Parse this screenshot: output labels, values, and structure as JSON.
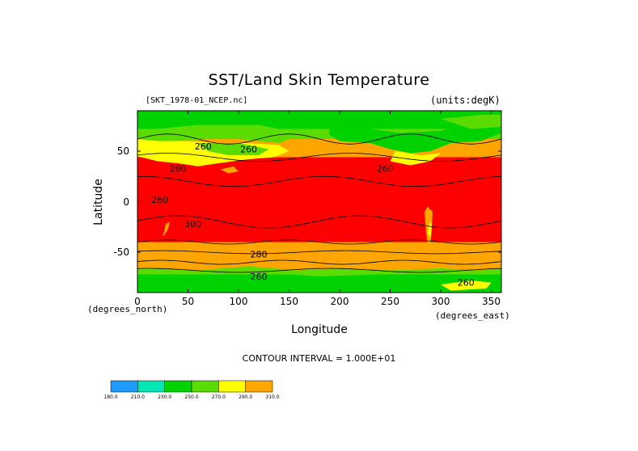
{
  "chart_data": {
    "type": "heatmap",
    "title": "SST/Land Skin Temperature",
    "subtitle_left": "[SKT_1978-01_NCEP.nc]",
    "subtitle_right": "(units:degK)",
    "xlabel": "Longitude",
    "ylabel": "Latitude",
    "x_units_label": "(degrees_east)",
    "y_units_label": "(degrees_north)",
    "xlim": [
      0,
      360
    ],
    "ylim": [
      -90,
      90
    ],
    "x_ticks": [
      "0",
      "50",
      "100",
      "150",
      "200",
      "250",
      "300",
      "350"
    ],
    "x_tick_values": [
      0,
      50,
      100,
      150,
      200,
      250,
      300,
      350
    ],
    "y_ticks": [
      "50",
      "0",
      "-50"
    ],
    "y_tick_values": [
      50,
      0,
      -50
    ],
    "contour_interval_label": "CONTOUR INTERVAL = 1.000E+01",
    "contour_labels": [
      {
        "text": "260",
        "x": 110,
        "y": 52
      },
      {
        "text": "260",
        "x": 65,
        "y": 55
      },
      {
        "text": "280",
        "x": 40,
        "y": 33
      },
      {
        "text": "260",
        "x": 245,
        "y": 33
      },
      {
        "text": "300",
        "x": 55,
        "y": -22
      },
      {
        "text": "280",
        "x": 120,
        "y": -52
      },
      {
        "text": "260",
        "x": 120,
        "y": -74
      },
      {
        "text": "260",
        "x": 325,
        "y": -80
      },
      {
        "text": "260",
        "x": 22,
        "y": 2
      }
    ],
    "colorbar": {
      "levels": [
        "180.0",
        "210.0",
        "230.0",
        "250.0",
        "270.0",
        "290.0",
        "310.0"
      ],
      "colors": [
        "#1e9bff",
        "#00e6b4",
        "#00d200",
        "#5adc00",
        "#ffff00",
        "#ffa500",
        "#ff0000"
      ]
    },
    "fill_colors": {
      "cold": "#00d200",
      "cool": "#5adc00",
      "mild": "#ffff00",
      "warm": "#ffa500",
      "hot": "#ff0000"
    }
  }
}
